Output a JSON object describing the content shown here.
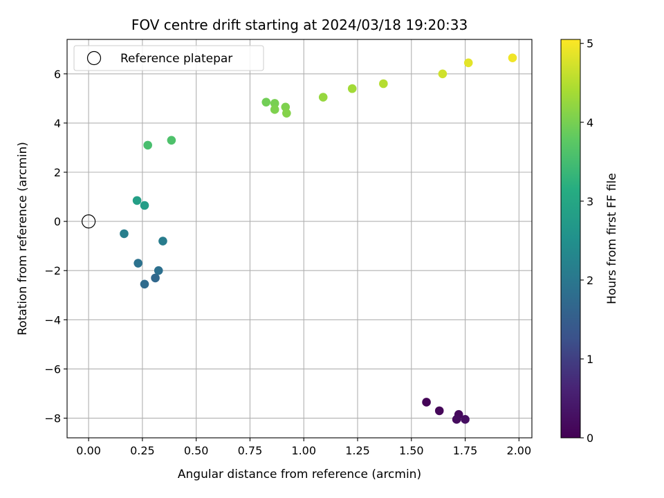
{
  "chart_data": {
    "type": "scatter",
    "title": "FOV centre drift starting at 2024/03/18 19:20:33",
    "xlabel": "Angular distance from reference (arcmin)",
    "ylabel": "Rotation from reference (arcmin)",
    "xlim": [
      -0.1,
      2.06
    ],
    "ylim": [
      -8.8,
      7.4
    ],
    "xticks": [
      0.0,
      0.25,
      0.5,
      0.75,
      1.0,
      1.25,
      1.5,
      1.75,
      2.0
    ],
    "xtick_labels": [
      "0.00",
      "0.25",
      "0.50",
      "0.75",
      "1.00",
      "1.25",
      "1.50",
      "1.75",
      "2.00"
    ],
    "yticks": [
      -8,
      -6,
      -4,
      -2,
      0,
      2,
      4,
      6
    ],
    "ytick_labels": [
      "−8",
      "−6",
      "−4",
      "−2",
      "0",
      "2",
      "4",
      "6"
    ],
    "grid": true,
    "legend": {
      "position": "top-left",
      "entries": [
        {
          "label": "Reference platepar",
          "marker": "hollow-circle"
        }
      ]
    },
    "reference_point": {
      "x": 0.0,
      "y": 0.0
    },
    "colorbar": {
      "label": "Hours from first FF file",
      "colormap": "viridis",
      "range": [
        0,
        5.05
      ],
      "ticks": [
        0,
        1,
        2,
        3,
        4,
        5
      ],
      "tick_labels": [
        "0",
        "1",
        "2",
        "3",
        "4",
        "5"
      ]
    },
    "points": [
      {
        "x": 1.57,
        "y": -7.35,
        "c": 0.05
      },
      {
        "x": 1.63,
        "y": -7.7,
        "c": 0.1
      },
      {
        "x": 1.72,
        "y": -7.85,
        "c": 0.15
      },
      {
        "x": 1.71,
        "y": -8.05,
        "c": 0.2
      },
      {
        "x": 1.75,
        "y": -8.05,
        "c": 0.25
      },
      {
        "x": 0.31,
        "y": -2.3,
        "c": 1.7
      },
      {
        "x": 0.26,
        "y": -2.55,
        "c": 1.75
      },
      {
        "x": 0.325,
        "y": -2.0,
        "c": 1.85
      },
      {
        "x": 0.23,
        "y": -1.7,
        "c": 1.9
      },
      {
        "x": 0.345,
        "y": -0.8,
        "c": 2.1
      },
      {
        "x": 0.165,
        "y": -0.5,
        "c": 2.15
      },
      {
        "x": 0.26,
        "y": 0.65,
        "c": 2.8
      },
      {
        "x": 0.225,
        "y": 0.85,
        "c": 2.85
      },
      {
        "x": 0.275,
        "y": 3.1,
        "c": 3.55
      },
      {
        "x": 0.385,
        "y": 3.3,
        "c": 3.6
      },
      {
        "x": 0.825,
        "y": 4.85,
        "c": 3.95
      },
      {
        "x": 0.865,
        "y": 4.8,
        "c": 4.0
      },
      {
        "x": 0.865,
        "y": 4.55,
        "c": 4.05
      },
      {
        "x": 0.915,
        "y": 4.65,
        "c": 4.05
      },
      {
        "x": 0.92,
        "y": 4.4,
        "c": 4.1
      },
      {
        "x": 1.09,
        "y": 5.05,
        "c": 4.25
      },
      {
        "x": 1.225,
        "y": 5.4,
        "c": 4.35
      },
      {
        "x": 1.37,
        "y": 5.6,
        "c": 4.5
      },
      {
        "x": 1.645,
        "y": 6.0,
        "c": 4.7
      },
      {
        "x": 1.765,
        "y": 6.45,
        "c": 4.85
      },
      {
        "x": 1.97,
        "y": 6.65,
        "c": 4.95
      }
    ]
  }
}
